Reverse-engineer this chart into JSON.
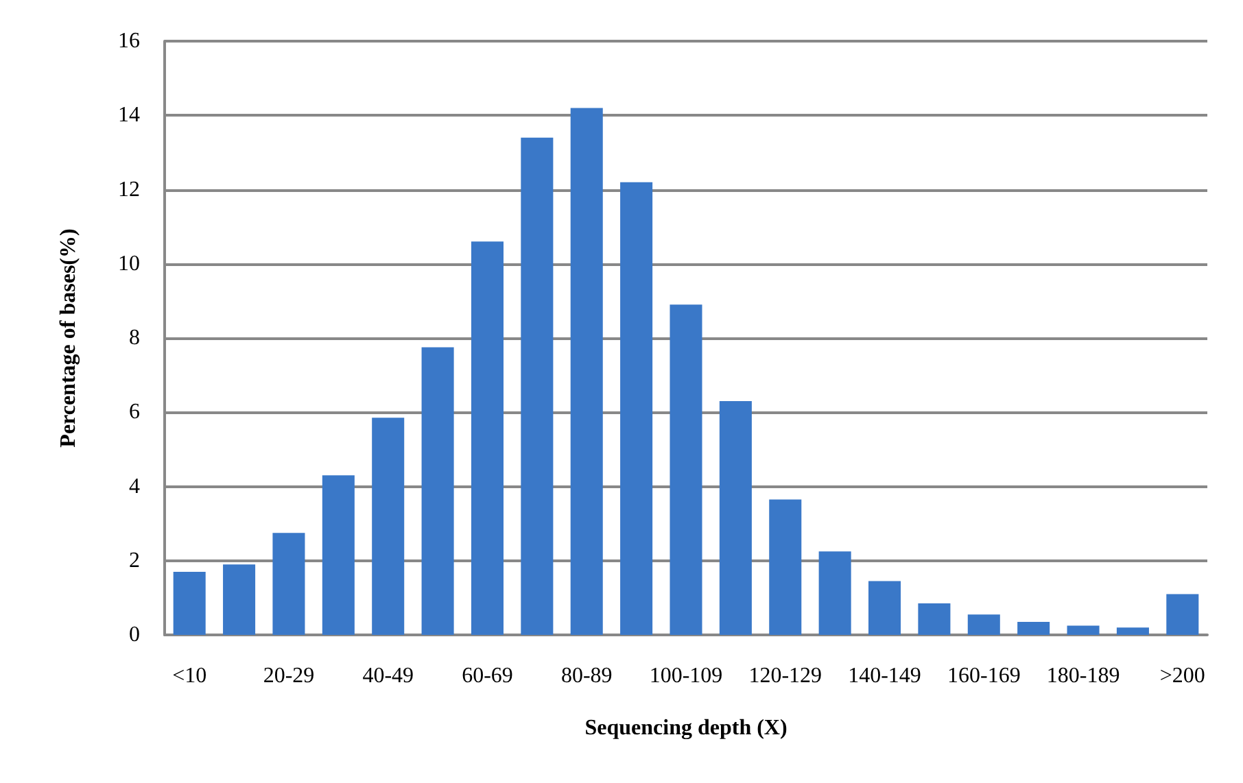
{
  "chart_data": {
    "type": "bar",
    "xlabel": "Sequencing depth (X)",
    "ylabel": "Percentage of bases(%)",
    "categories": [
      "<10",
      null,
      "20-29",
      null,
      "40-49",
      null,
      "60-69",
      null,
      "80-89",
      null,
      "100-109",
      null,
      "120-129",
      null,
      "140-149",
      null,
      "160-169",
      null,
      "180-189",
      null,
      ">200"
    ],
    "values": [
      1.7,
      1.9,
      2.75,
      4.3,
      5.85,
      7.75,
      10.6,
      13.4,
      14.2,
      12.2,
      8.9,
      6.3,
      3.65,
      2.25,
      1.45,
      0.85,
      0.55,
      0.35,
      0.25,
      0.2,
      1.1
    ],
    "color": "#3a78c8",
    "ylim": [
      0,
      16
    ],
    "yticks": [
      0,
      2,
      4,
      6,
      8,
      10,
      12,
      14,
      16
    ],
    "grid": "y"
  }
}
